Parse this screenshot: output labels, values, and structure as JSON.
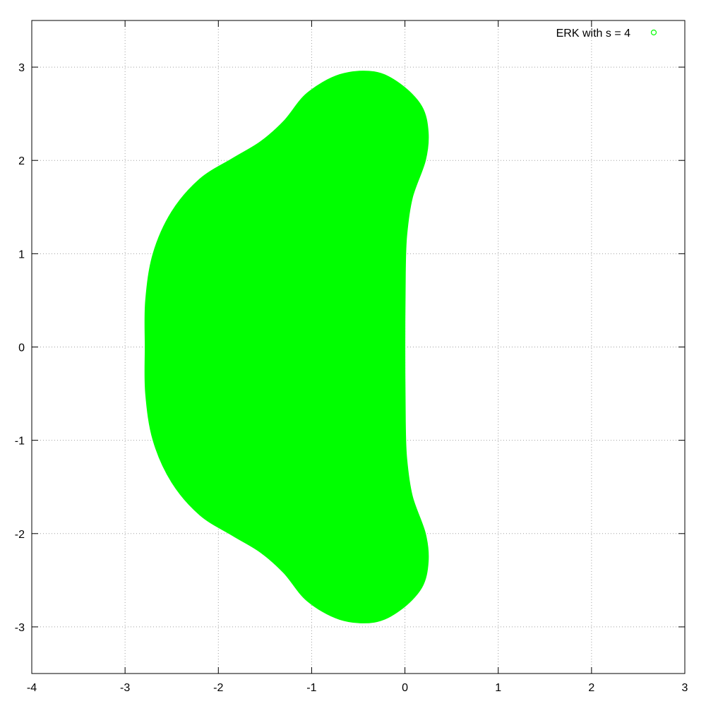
{
  "chart_data": {
    "type": "area",
    "title": "",
    "xlabel": "",
    "ylabel": "",
    "xlim": [
      -4,
      3
    ],
    "ylim": [
      -3.5,
      3.5
    ],
    "x_ticks": [
      -4,
      -3,
      -2,
      -1,
      0,
      1,
      2,
      3
    ],
    "y_ticks": [
      -3,
      -2,
      -1,
      0,
      1,
      2,
      3
    ],
    "x_tick_labels": [
      "-4",
      "-3",
      "-2",
      "-1",
      "0",
      "1",
      "2",
      "3"
    ],
    "y_tick_labels": [
      "-3",
      "-2",
      "-1",
      "0",
      "1",
      "2",
      "3"
    ],
    "grid": true,
    "legend_position": "top-right",
    "series": [
      {
        "name": "ERK with s = 4",
        "color": "#00ff00",
        "marker": "circle-open",
        "boundary": [
          [
            -2.785,
            0.0
          ],
          [
            -2.78,
            0.5
          ],
          [
            -2.7,
            1.0
          ],
          [
            -2.5,
            1.45
          ],
          [
            -2.2,
            1.8
          ],
          [
            -1.85,
            2.02
          ],
          [
            -1.55,
            2.2
          ],
          [
            -1.3,
            2.42
          ],
          [
            -1.05,
            2.72
          ],
          [
            -0.7,
            2.92
          ],
          [
            -0.33,
            2.95
          ],
          [
            -0.05,
            2.82
          ],
          [
            0.18,
            2.58
          ],
          [
            0.25,
            2.3
          ],
          [
            0.22,
            2.0
          ],
          [
            0.08,
            1.6
          ],
          [
            0.02,
            1.2
          ],
          [
            0.005,
            0.8
          ],
          [
            0.0,
            0.0
          ],
          [
            0.005,
            -0.8
          ],
          [
            0.02,
            -1.2
          ],
          [
            0.08,
            -1.6
          ],
          [
            0.22,
            -2.0
          ],
          [
            0.25,
            -2.3
          ],
          [
            0.18,
            -2.58
          ],
          [
            -0.05,
            -2.82
          ],
          [
            -0.33,
            -2.95
          ],
          [
            -0.7,
            -2.92
          ],
          [
            -1.05,
            -2.72
          ],
          [
            -1.3,
            -2.42
          ],
          [
            -1.55,
            -2.2
          ],
          [
            -1.85,
            -2.02
          ],
          [
            -2.2,
            -1.8
          ],
          [
            -2.5,
            -1.45
          ],
          [
            -2.7,
            -1.0
          ],
          [
            -2.78,
            -0.5
          ]
        ]
      }
    ]
  }
}
